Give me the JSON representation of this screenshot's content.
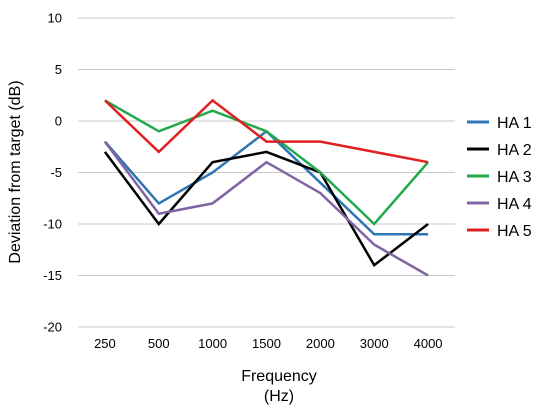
{
  "chart_data": {
    "type": "line",
    "title": "",
    "xlabel": [
      "Frequency",
      "(Hz)"
    ],
    "ylabel": "Deviation  from target (dB)",
    "categories": [
      "250",
      "500",
      "1000",
      "1500",
      "2000",
      "3000",
      "4000"
    ],
    "ylim": [
      -20,
      10
    ],
    "yticks": [
      10,
      5,
      0,
      -5,
      -10,
      -15,
      -20
    ],
    "grid": "horizontal",
    "legend_position": "right",
    "series": [
      {
        "name": "HA 1",
        "color": "#2E75B6",
        "values": [
          -2,
          -8,
          -5,
          -1,
          -6,
          -11,
          -11
        ]
      },
      {
        "name": "HA 2",
        "color": "#000000",
        "values": [
          -3,
          -10,
          -4,
          -3,
          -5,
          -14,
          -10
        ]
      },
      {
        "name": "HA 3",
        "color": "#22A94B",
        "values": [
          2,
          -1,
          1,
          -1,
          -5,
          -10,
          -4
        ]
      },
      {
        "name": "HA 4",
        "color": "#8064A2",
        "values": [
          -2,
          -9,
          -8,
          -4,
          -7,
          -12,
          -15
        ]
      },
      {
        "name": "HA 5",
        "color": "#E02020",
        "values": [
          2,
          -3,
          2,
          -2,
          -2,
          -3,
          -4
        ]
      }
    ]
  }
}
